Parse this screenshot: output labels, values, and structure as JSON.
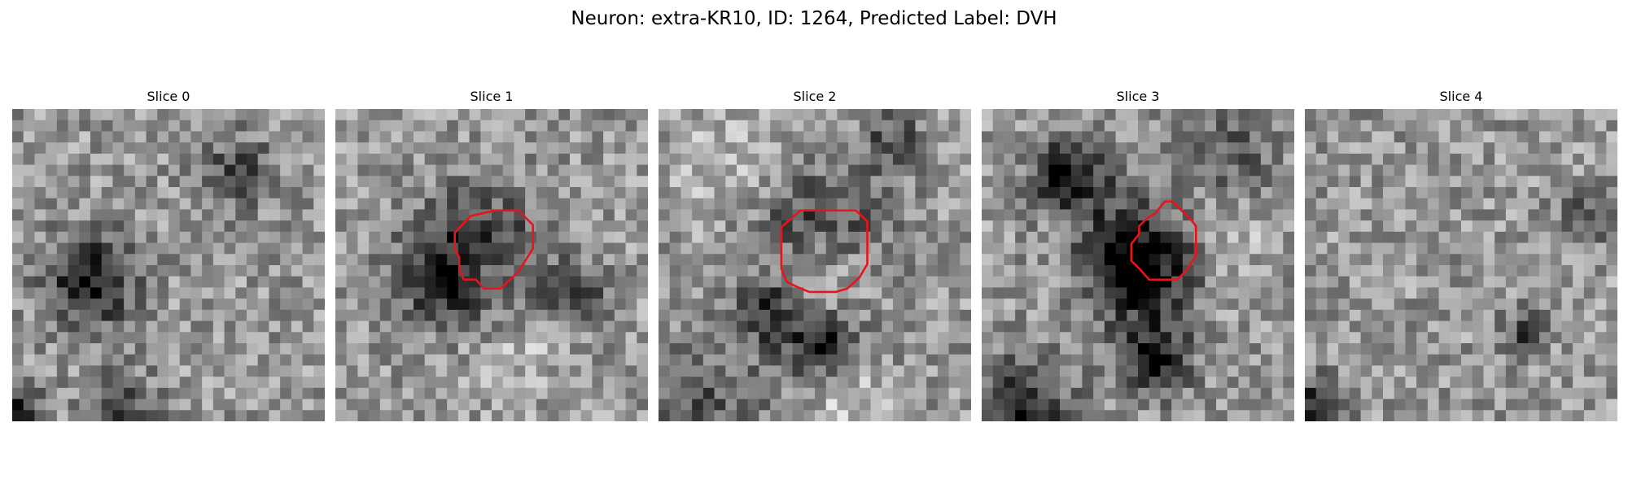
{
  "figure": {
    "title": "Neuron: extra-KR10, ID: 1264, Predicted Label: DVH"
  },
  "panels": [
    {
      "title": "Slice 0",
      "has_roi": false,
      "seed": 11,
      "dark": [
        [
          0.25,
          0.55,
          0.1,
          -0.55
        ],
        [
          0.03,
          0.97,
          0.05,
          -0.45
        ],
        [
          0.35,
          0.97,
          0.08,
          -0.35
        ],
        [
          0.72,
          0.2,
          0.08,
          -0.35
        ]
      ]
    },
    {
      "title": "Slice 1",
      "has_roi": true,
      "seed": 23,
      "dark": [
        [
          0.45,
          0.5,
          0.15,
          -0.55
        ],
        [
          0.78,
          0.6,
          0.06,
          -0.5
        ],
        [
          0.3,
          0.55,
          0.06,
          -0.3
        ]
      ],
      "bright": [
        [
          0.5,
          0.5,
          0.06,
          0.25
        ],
        [
          0.55,
          0.75,
          0.12,
          0.2
        ]
      ]
    },
    {
      "title": "Slice 2",
      "has_roi": true,
      "seed": 37,
      "dark": [
        [
          0.5,
          0.4,
          0.15,
          -0.45
        ],
        [
          0.52,
          0.75,
          0.08,
          -0.5
        ],
        [
          0.35,
          0.65,
          0.07,
          -0.4
        ],
        [
          0.15,
          0.95,
          0.15,
          -0.25
        ],
        [
          0.75,
          0.1,
          0.07,
          -0.3
        ]
      ],
      "bright": [
        [
          0.52,
          0.52,
          0.11,
          0.35
        ],
        [
          0.25,
          0.2,
          0.15,
          0.15
        ],
        [
          0.6,
          0.92,
          0.08,
          0.2
        ]
      ]
    },
    {
      "title": "Slice 3",
      "has_roi": true,
      "seed": 53,
      "dark": [
        [
          0.5,
          0.5,
          0.12,
          -0.7
        ],
        [
          0.55,
          0.8,
          0.08,
          -0.55
        ],
        [
          0.25,
          0.2,
          0.07,
          -0.45
        ],
        [
          0.35,
          0.25,
          0.1,
          -0.25
        ],
        [
          0.12,
          0.97,
          0.12,
          -0.45
        ],
        [
          0.8,
          0.15,
          0.1,
          -0.25
        ]
      ],
      "bright": [
        [
          0.8,
          0.4,
          0.08,
          0.15
        ]
      ]
    },
    {
      "title": "Slice 4",
      "has_roi": false,
      "seed": 71,
      "dark": [
        [
          0.05,
          0.95,
          0.06,
          -0.5
        ],
        [
          0.9,
          0.35,
          0.06,
          -0.3
        ],
        [
          0.7,
          0.72,
          0.05,
          -0.35
        ]
      ]
    }
  ],
  "colors": {
    "roi": "#e8141b",
    "background": "#ffffff"
  },
  "roi_contours": {
    "Slice 1": [
      [
        14.3,
        9.1
      ],
      [
        16.4,
        9.1
      ],
      [
        17.7,
        10.4
      ],
      [
        17.7,
        12.5
      ],
      [
        16.4,
        14.6
      ],
      [
        14.8,
        16.1
      ],
      [
        13.3,
        16.1
      ],
      [
        12.6,
        15.3
      ],
      [
        11.5,
        15.3
      ],
      [
        11.1,
        14.3
      ],
      [
        11.1,
        13.3
      ],
      [
        10.7,
        12.5
      ],
      [
        10.7,
        11.1
      ],
      [
        12.1,
        9.6
      ]
    ],
    "Slice 2": [
      [
        12.7,
        9.1
      ],
      [
        17.7,
        9.1
      ],
      [
        18.7,
        10.1
      ],
      [
        18.7,
        13.9
      ],
      [
        18.0,
        15.1
      ],
      [
        16.9,
        16.1
      ],
      [
        15.9,
        16.4
      ],
      [
        13.5,
        16.4
      ],
      [
        12.3,
        15.9
      ],
      [
        11.5,
        15.5
      ],
      [
        11.0,
        14.3
      ],
      [
        11.0,
        10.6
      ]
    ],
    "Slice 3": [
      [
        16.4,
        8.3
      ],
      [
        17.1,
        8.3
      ],
      [
        18.2,
        9.4
      ],
      [
        18.8,
        10.0
      ],
      [
        19.2,
        10.5
      ],
      [
        19.2,
        13.1
      ],
      [
        18.4,
        14.4
      ],
      [
        17.5,
        15.3
      ],
      [
        15.0,
        15.3
      ],
      [
        14.2,
        14.4
      ],
      [
        13.4,
        13.6
      ],
      [
        13.4,
        12.1
      ],
      [
        14.1,
        11.2
      ],
      [
        14.1,
        10.5
      ],
      [
        14.8,
        9.8
      ],
      [
        15.5,
        9.4
      ]
    ]
  }
}
